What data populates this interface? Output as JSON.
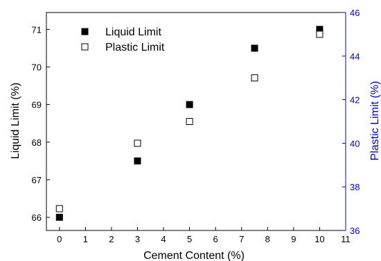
{
  "chart_data": {
    "type": "scatter",
    "xlabel": "Cement Content (%)",
    "ylabel": "Liquid Limit (%)",
    "y2label": "Plastic Limit (%)",
    "xlim": [
      -0.5,
      11
    ],
    "ylim": [
      65.65,
      71.45
    ],
    "y2lim": [
      36,
      46
    ],
    "xticks": [
      "0",
      "1",
      "2",
      "3",
      "4",
      "5",
      "6",
      "7",
      "8",
      "9",
      "10",
      "11"
    ],
    "yticks": [
      "66",
      "67",
      "68",
      "69",
      "70",
      "71"
    ],
    "y2ticks": [
      "36",
      "38",
      "40",
      "42",
      "44",
      "46"
    ],
    "right_axis_color": "#0000cc",
    "legend_position": "top-left",
    "series": [
      {
        "name": "Liquid Limit",
        "axis": "left",
        "marker": "filled-square",
        "x": [
          0,
          3,
          5,
          7.5,
          10
        ],
        "y": [
          66.0,
          67.5,
          69.0,
          70.5,
          71.0
        ]
      },
      {
        "name": "Plastic Limit",
        "axis": "right",
        "marker": "open-square",
        "x": [
          0,
          3,
          5,
          7.5,
          10
        ],
        "y": [
          37.0,
          40.0,
          41.0,
          43.0,
          45.0
        ]
      }
    ]
  }
}
